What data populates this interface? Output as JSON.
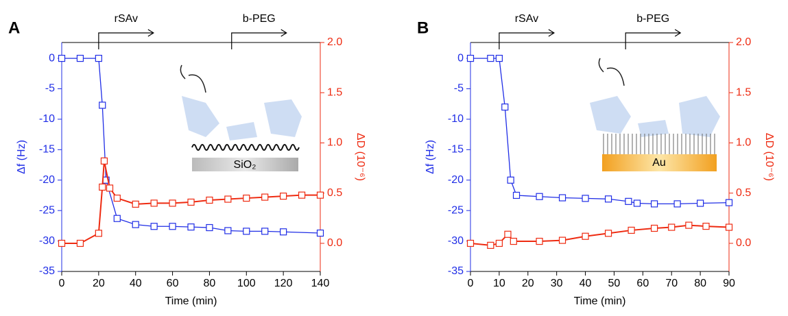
{
  "chart_data": [
    {
      "type": "line",
      "panel_label": "A",
      "xlabel": "Time (min)",
      "ylabel": "Δf (Hz)",
      "y2label": "ΔD (10⁻⁶)",
      "inset_label": "SiO₂",
      "xlim": [
        0,
        140
      ],
      "xticks": [
        0,
        20,
        40,
        60,
        80,
        100,
        120,
        140
      ],
      "ylim": [
        -35,
        2.6
      ],
      "yticks": [
        -35,
        -30,
        -25,
        -20,
        -15,
        -10,
        -5,
        0
      ],
      "y2lim": [
        -0.28,
        2.0
      ],
      "y2ticks": [
        {
          "value": 0,
          "label": "0.0"
        },
        {
          "value": 0.5,
          "label": "0.5"
        },
        {
          "value": 1,
          "label": "1.0"
        },
        {
          "value": 1.5,
          "label": "1.5"
        },
        {
          "value": 2,
          "label": "2.0"
        }
      ],
      "annotations": [
        {
          "text": "rSAv",
          "x": 20
        },
        {
          "text": "b-PEG",
          "x": 92
        }
      ],
      "series": [
        {
          "color": "#1f2de6",
          "x": [
            0,
            10,
            20,
            22,
            24,
            30,
            40,
            50,
            60,
            70,
            80,
            90,
            100,
            110,
            120,
            140
          ],
          "values": [
            0,
            0,
            0,
            -7.7,
            -20,
            -26.3,
            -27.3,
            -27.6,
            -27.6,
            -27.7,
            -27.8,
            -28.3,
            -28.4,
            -28.4,
            -28.5,
            -28.7
          ]
        },
        {
          "color": "#ee2a10",
          "axis": "y2",
          "x": [
            0,
            10,
            20,
            22,
            23,
            26,
            30,
            40,
            50,
            60,
            70,
            80,
            90,
            100,
            110,
            120,
            130,
            140
          ],
          "values": [
            0.0,
            0.0,
            0.1,
            0.56,
            0.82,
            0.55,
            0.45,
            0.39,
            0.4,
            0.4,
            0.41,
            0.43,
            0.44,
            0.45,
            0.46,
            0.47,
            0.48,
            0.48
          ]
        }
      ]
    },
    {
      "type": "line",
      "panel_label": "B",
      "xlabel": "Time (min)",
      "ylabel": "Δf (Hz)",
      "y2label": "ΔD (10⁻⁶)",
      "inset_label": "Au",
      "xlim": [
        0,
        90
      ],
      "xticks": [
        0,
        10,
        20,
        30,
        40,
        50,
        60,
        70,
        80,
        90
      ],
      "ylim": [
        -35,
        2.6
      ],
      "yticks": [
        -35,
        -30,
        -25,
        -20,
        -15,
        -10,
        -5,
        0
      ],
      "y2lim": [
        -0.28,
        2.0
      ],
      "y2ticks": [
        {
          "value": 0,
          "label": "0.0"
        },
        {
          "value": 0.5,
          "label": "0.5"
        },
        {
          "value": 1,
          "label": "1.0"
        },
        {
          "value": 1.5,
          "label": "1.5"
        },
        {
          "value": 2,
          "label": "2.0"
        }
      ],
      "annotations": [
        {
          "text": "rSAv",
          "x": 10
        },
        {
          "text": "b-PEG",
          "x": 54
        }
      ],
      "series": [
        {
          "color": "#1f2de6",
          "x": [
            0,
            7,
            10,
            12,
            14,
            16,
            24,
            32,
            40,
            48,
            55,
            58,
            64,
            72,
            80,
            90
          ],
          "values": [
            0,
            0,
            0,
            -8,
            -20,
            -22.5,
            -22.7,
            -22.9,
            -23,
            -23.1,
            -23.5,
            -23.8,
            -23.9,
            -23.9,
            -23.8,
            -23.7
          ]
        },
        {
          "color": "#ee2a10",
          "axis": "y2",
          "x": [
            0,
            7,
            10,
            13,
            15,
            24,
            32,
            40,
            48,
            56,
            64,
            70,
            76,
            82,
            90
          ],
          "values": [
            0.0,
            -0.02,
            0.0,
            0.09,
            0.02,
            0.02,
            0.03,
            0.07,
            0.1,
            0.13,
            0.15,
            0.16,
            0.18,
            0.17,
            0.16
          ]
        }
      ]
    }
  ]
}
